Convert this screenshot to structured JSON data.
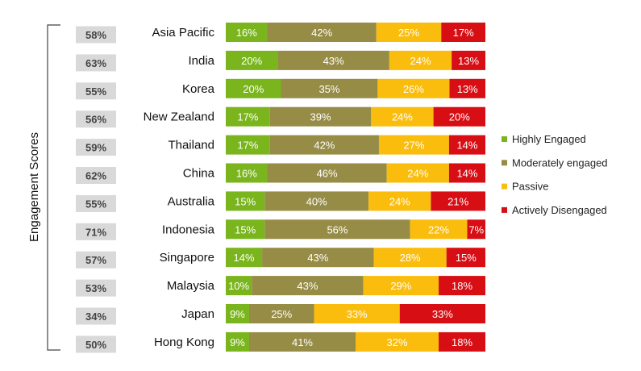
{
  "chart_data": {
    "type": "bar",
    "orientation": "horizontal",
    "stacked": true,
    "percent_stacked": true,
    "ylabel": "Engagement Scores",
    "categories": [
      "Asia Pacific",
      "India",
      "Korea",
      "New Zealand",
      "Thailand",
      "China",
      "Australia",
      "Indonesia",
      "Singapore",
      "Malaysia",
      "Japan",
      "Hong Kong"
    ],
    "engagement_scores": [
      "58%",
      "63%",
      "55%",
      "56%",
      "59%",
      "62%",
      "55%",
      "71%",
      "57%",
      "53%",
      "34%",
      "50%"
    ],
    "series": [
      {
        "name": "Highly Engaged",
        "color": "#7ab51d",
        "values": [
          16,
          20,
          20,
          17,
          17,
          16,
          15,
          15,
          14,
          10,
          9,
          9
        ]
      },
      {
        "name": "Moderately engaged",
        "color": "#968c46",
        "values": [
          42,
          43,
          35,
          39,
          42,
          46,
          40,
          56,
          43,
          43,
          25,
          41
        ]
      },
      {
        "name": "Passive",
        "color": "#fbbd0d",
        "values": [
          25,
          24,
          26,
          24,
          27,
          24,
          24,
          22,
          28,
          29,
          33,
          32
        ]
      },
      {
        "name": "Actively Disengaged",
        "color": "#d70e14",
        "values": [
          17,
          13,
          13,
          20,
          14,
          14,
          21,
          7,
          15,
          18,
          33,
          18
        ]
      }
    ],
    "legend_position": "right",
    "grid": false
  }
}
